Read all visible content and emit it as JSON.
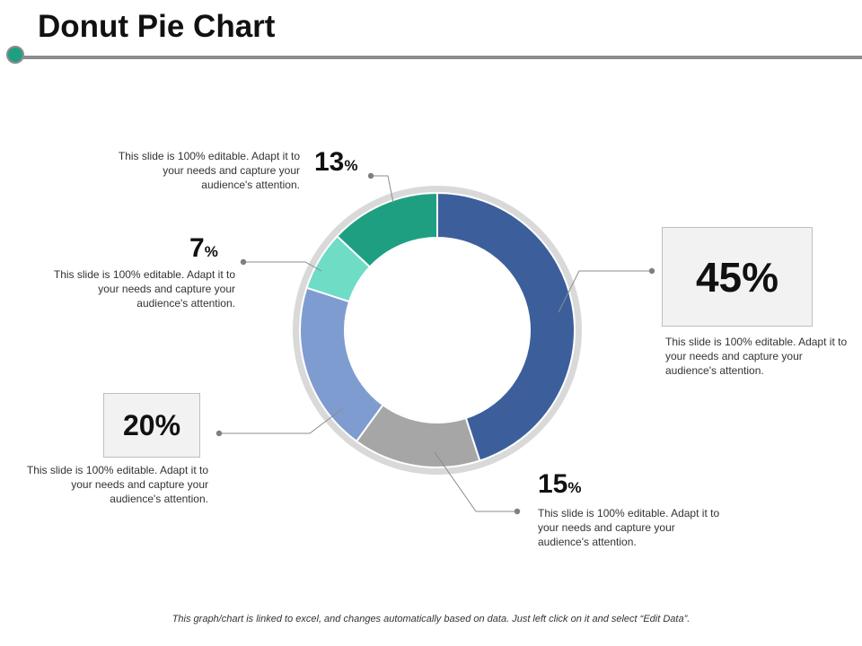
{
  "page": {
    "title": "Donut Pie Chart",
    "footer": "This graph/chart is linked to excel, and changes automatically based on data. Just left click on it and select “Edit Data”."
  },
  "chart_data": {
    "type": "pie",
    "variant": "donut",
    "start": "12 o'clock",
    "direction": "clockwise",
    "legend": "none",
    "slices": [
      {
        "value": 45,
        "label": "45%",
        "color": "#3c5f9c",
        "description": "This slide is 100% editable. Adapt it to your needs and capture your audience's attention."
      },
      {
        "value": 15,
        "label": "15",
        "unit": "%",
        "color": "#a6a6a6",
        "description": "This slide is 100% editable. Adapt it to your needs and capture your audience's attention."
      },
      {
        "value": 20,
        "label": "20%",
        "color": "#7f9cd1",
        "description": "This slide is 100% editable. Adapt it to your needs and capture your audience's attention."
      },
      {
        "value": 7,
        "label": "7",
        "unit": "%",
        "color": "#6fdcc6",
        "description": "This slide is 100% editable. Adapt it to your needs and capture your audience's attention."
      },
      {
        "value": 13,
        "label": "13",
        "unit": "%",
        "color": "#1f9f82",
        "description": "This slide is 100% editable. Adapt it to your needs and capture your audience's attention."
      }
    ],
    "colors": {
      "ring_border": "#d9d9d9",
      "accent": "#1f9f82",
      "rule": "#8c8c8c"
    }
  }
}
